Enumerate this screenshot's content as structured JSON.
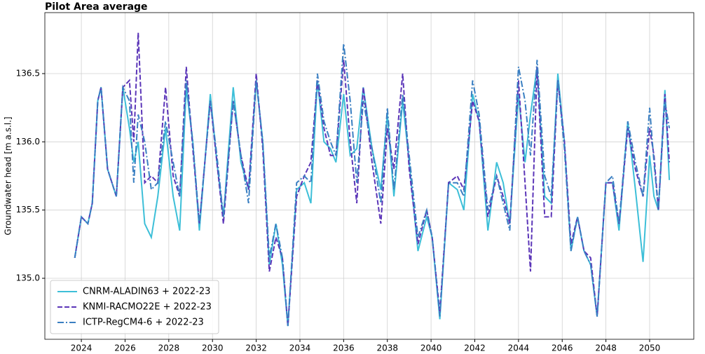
{
  "chart_data": {
    "type": "line",
    "title": "Pilot Area average",
    "ylabel": "Groundwater head [m a.s.l.]",
    "x": [
      2023.7,
      2024.0,
      2024.3,
      2024.5,
      2024.75,
      2024.9,
      2025.2,
      2025.6,
      2025.9,
      2026.2,
      2026.4,
      2026.6,
      2026.9,
      2027.2,
      2027.5,
      2027.85,
      2028.2,
      2028.5,
      2028.8,
      2029.1,
      2029.4,
      2029.9,
      2030.2,
      2030.5,
      2030.95,
      2031.3,
      2031.65,
      2032.0,
      2032.3,
      2032.6,
      2032.9,
      2033.2,
      2033.45,
      2033.85,
      2034.2,
      2034.5,
      2034.8,
      2035.1,
      2035.4,
      2035.65,
      2036.0,
      2036.3,
      2036.6,
      2036.9,
      2037.3,
      2037.7,
      2038.0,
      2038.3,
      2038.7,
      2039.0,
      2039.4,
      2039.8,
      2040.05,
      2040.4,
      2040.8,
      2041.2,
      2041.5,
      2041.9,
      2042.2,
      2042.6,
      2043.0,
      2043.3,
      2043.6,
      2044.0,
      2044.3,
      2044.55,
      2044.85,
      2045.2,
      2045.5,
      2045.8,
      2046.1,
      2046.4,
      2046.7,
      2047.0,
      2047.3,
      2047.6,
      2048.0,
      2048.3,
      2048.6,
      2049.0,
      2049.35,
      2049.7,
      2050.0,
      2050.2,
      2050.4,
      2050.7,
      2050.9
    ],
    "series": [
      {
        "name": "CNRM-ALADIN63 + 2022-23",
        "color": "#3dbfd8",
        "linestyle": "solid",
        "values": [
          135.15,
          135.45,
          135.4,
          135.55,
          136.3,
          136.4,
          135.8,
          135.6,
          136.4,
          136.1,
          135.85,
          136.0,
          135.4,
          135.3,
          135.6,
          136.1,
          135.6,
          135.35,
          136.4,
          136.0,
          135.35,
          136.35,
          135.85,
          135.45,
          136.4,
          135.85,
          135.65,
          136.45,
          136.0,
          135.1,
          135.4,
          135.1,
          134.65,
          135.65,
          135.7,
          135.55,
          136.45,
          136.0,
          135.95,
          135.85,
          136.35,
          135.9,
          135.95,
          136.4,
          135.95,
          135.65,
          136.2,
          135.6,
          136.3,
          135.85,
          135.2,
          135.45,
          135.3,
          134.7,
          135.7,
          135.65,
          135.5,
          136.35,
          136.15,
          135.35,
          135.85,
          135.7,
          135.4,
          136.35,
          135.85,
          136.2,
          136.55,
          135.6,
          135.55,
          136.5,
          136.0,
          135.2,
          135.45,
          135.2,
          135.1,
          134.72,
          135.7,
          135.7,
          135.35,
          136.15,
          135.65,
          135.12,
          135.9,
          135.6,
          135.5,
          136.38,
          135.72
        ]
      },
      {
        "name": "KNMI-RACMO22E + 2022-23",
        "color": "#5b35b8",
        "linestyle": "dashed",
        "values": [
          135.15,
          135.45,
          135.4,
          135.55,
          136.3,
          136.4,
          135.8,
          135.6,
          136.4,
          136.45,
          136.0,
          136.8,
          135.7,
          135.75,
          135.7,
          136.4,
          135.75,
          135.6,
          136.55,
          135.95,
          135.4,
          136.3,
          135.85,
          135.4,
          136.3,
          135.9,
          135.65,
          136.5,
          135.95,
          135.05,
          135.3,
          135.15,
          134.65,
          135.6,
          135.75,
          135.85,
          136.45,
          136.1,
          135.9,
          135.9,
          136.6,
          136.0,
          135.55,
          136.4,
          135.85,
          135.4,
          136.1,
          135.8,
          136.5,
          135.8,
          135.25,
          135.5,
          135.3,
          134.75,
          135.7,
          135.75,
          135.65,
          136.3,
          136.15,
          135.45,
          135.75,
          135.6,
          135.4,
          136.45,
          135.7,
          135.05,
          136.55,
          135.45,
          135.45,
          136.45,
          136.0,
          135.25,
          135.45,
          135.2,
          135.15,
          134.72,
          135.7,
          135.7,
          135.4,
          136.1,
          135.8,
          135.6,
          136.1,
          135.9,
          135.5,
          136.35,
          135.85
        ]
      },
      {
        "name": "ICTP-RegCM4-6 + 2022-23",
        "color": "#3a7fc2",
        "linestyle": "dashdot",
        "values": [
          135.15,
          135.45,
          135.4,
          135.55,
          136.3,
          136.4,
          135.8,
          135.6,
          136.4,
          136.3,
          135.7,
          136.2,
          136.0,
          135.65,
          135.7,
          136.15,
          135.85,
          135.6,
          136.45,
          136.0,
          135.4,
          136.3,
          135.9,
          135.45,
          136.3,
          135.9,
          135.55,
          136.45,
          136.0,
          135.15,
          135.4,
          135.15,
          134.65,
          135.7,
          135.75,
          135.7,
          136.5,
          136.15,
          136.0,
          135.9,
          136.72,
          136.3,
          135.7,
          136.3,
          135.95,
          135.55,
          136.25,
          135.65,
          136.35,
          135.9,
          135.3,
          135.5,
          135.3,
          134.72,
          135.7,
          135.7,
          135.6,
          136.45,
          136.2,
          135.5,
          135.75,
          135.55,
          135.35,
          136.55,
          136.3,
          135.9,
          136.6,
          135.75,
          135.6,
          136.45,
          135.95,
          135.2,
          135.45,
          135.2,
          135.1,
          134.72,
          135.7,
          135.75,
          135.4,
          136.15,
          135.85,
          135.6,
          136.25,
          135.85,
          135.5,
          136.3,
          136.1
        ]
      }
    ],
    "xlim": [
      2022.33,
      2052.02
    ],
    "xticks": [
      2024,
      2026,
      2028,
      2030,
      2032,
      2034,
      2036,
      2038,
      2040,
      2042,
      2044,
      2046,
      2048,
      2050
    ],
    "ylim": [
      134.553,
      136.947
    ],
    "yticks": [
      {
        "value": 135,
        "label": "135.0"
      },
      135.5,
      {
        "value": 136,
        "label": "136.0"
      },
      136.5
    ],
    "grid": true,
    "legend": "lower left"
  }
}
